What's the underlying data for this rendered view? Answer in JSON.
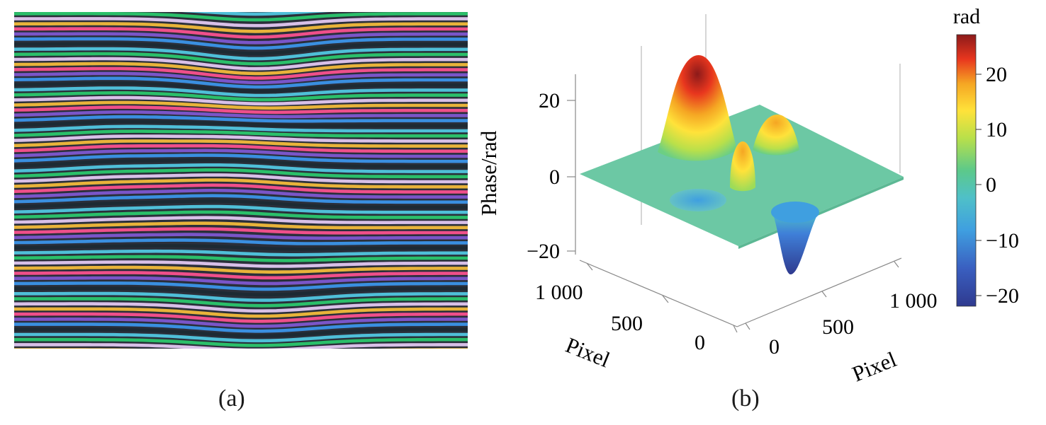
{
  "panel_a": {
    "label": "(a)"
  },
  "panel_b": {
    "label": "(b)",
    "z_axis": {
      "label": "Phase/rad",
      "ticks": [
        "20",
        "0",
        "−20"
      ]
    },
    "x_axis": {
      "label": "Pixel",
      "ticks": [
        "1 000",
        "500",
        "0"
      ]
    },
    "y_axis": {
      "label": "Pixel",
      "ticks": [
        "0",
        "500",
        "1 000"
      ]
    },
    "colorbar": {
      "unit": "rad",
      "ticks": [
        "20",
        "10",
        "0",
        "−10",
        "−20"
      ],
      "colors": [
        "#2f3a8f",
        "#3f7fd8",
        "#4fc0c8",
        "#5cc98a",
        "#b9e04a",
        "#ffe23a",
        "#f5a623",
        "#e8361e",
        "#8c1a1a"
      ]
    }
  }
}
